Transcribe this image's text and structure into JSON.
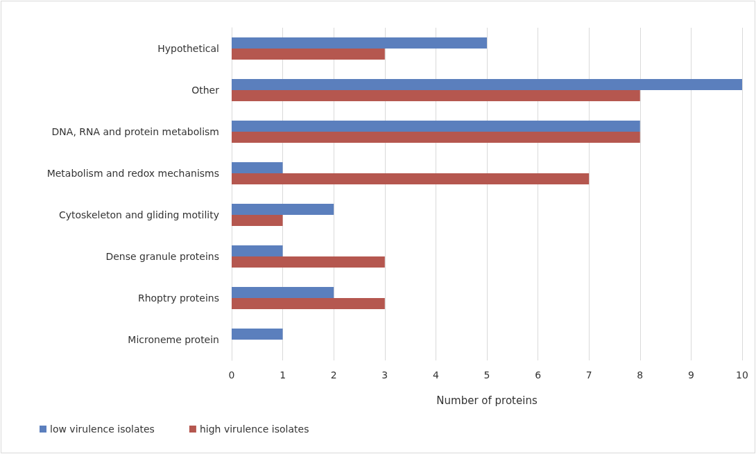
{
  "chart_data": {
    "type": "bar",
    "orientation": "horizontal",
    "xlabel": "Number of proteins",
    "categories": [
      "Hypothetical",
      "Other",
      "DNA, RNA and protein metabolism",
      "Metabolism and redox mechanisms",
      "Cytoskeleton and gliding motility",
      "Dense granule proteins",
      "Rhoptry proteins",
      "Microneme protein"
    ],
    "series": [
      {
        "name": "low virulence isolates",
        "color": "#5b7fbd",
        "values": [
          5,
          10,
          8,
          1,
          2,
          1,
          2,
          1
        ]
      },
      {
        "name": "high virulence isolates",
        "color": "#b5574f",
        "values": [
          3,
          8,
          8,
          7,
          1,
          3,
          3,
          0
        ]
      }
    ],
    "xlim": [
      0,
      10
    ],
    "xticks": [
      0,
      1,
      2,
      3,
      4,
      5,
      6,
      7,
      8,
      9,
      10
    ],
    "grid": "x",
    "legend": "bottom left"
  }
}
